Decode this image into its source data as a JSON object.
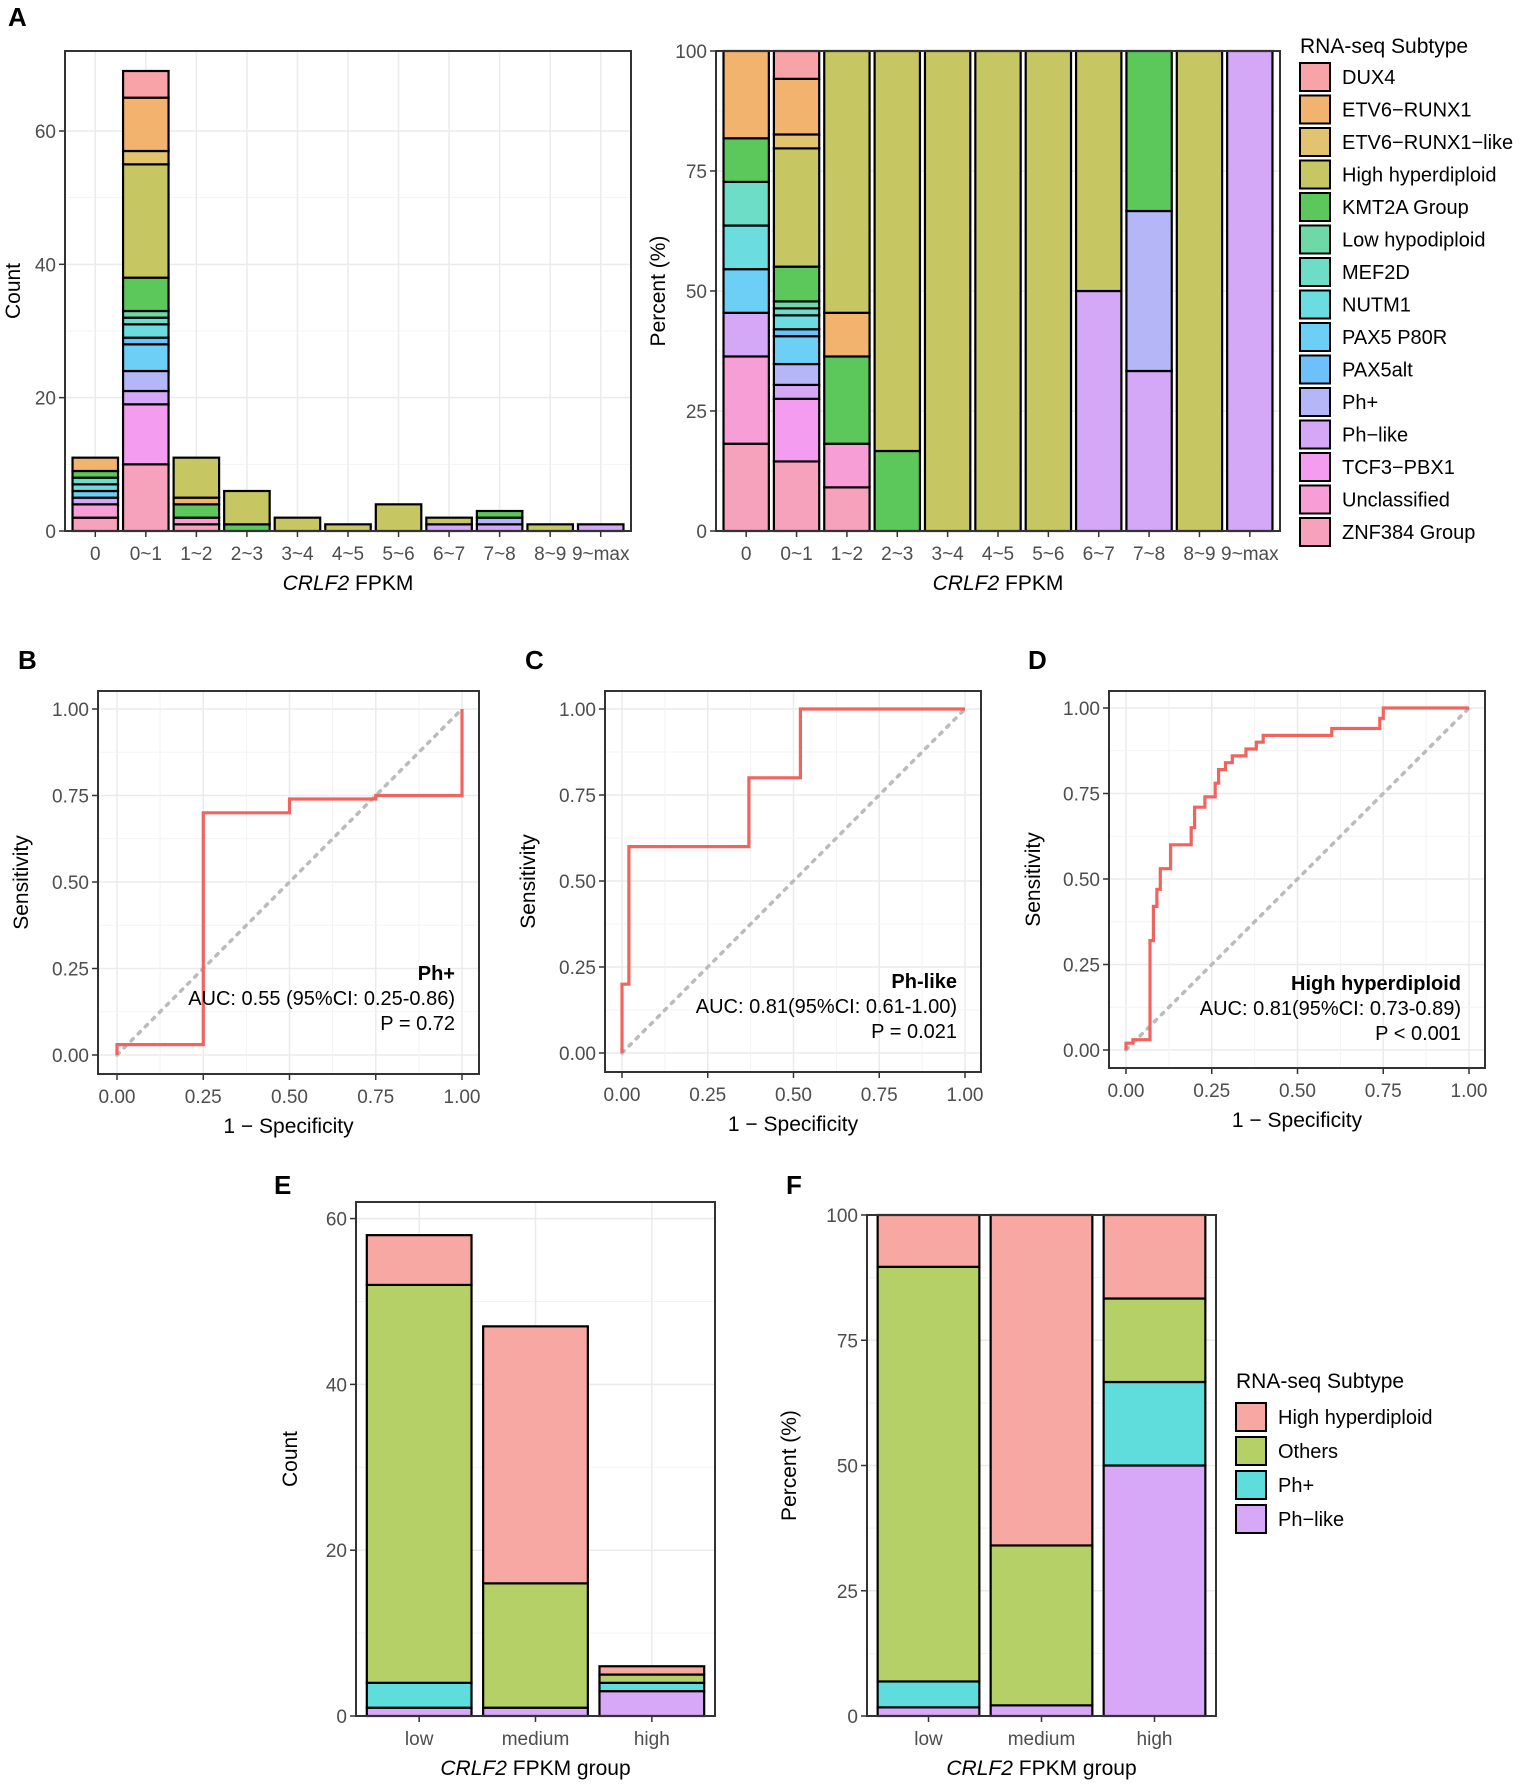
{
  "panel_labels": {
    "A": "A",
    "B": "B",
    "C": "C",
    "D": "D",
    "E": "E",
    "F": "F"
  },
  "colors": {
    "DUX4": "#F8A3A7",
    "ETV6-RUNX1": "#F2B36F",
    "ETV6-RUNX1-like": "#E2C36F",
    "High hyperdiploid": "#C6C662",
    "KMT2A Group": "#5CC85C",
    "Low hypodiploid": "#6ED9A7",
    "MEF2D": "#6EDDC8",
    "NUTM1": "#6BDCE0",
    "PAX5 P80R": "#6DCFF6",
    "PAX5alt": "#6EC0F8",
    "Ph+": "#B4B6F8",
    "Ph-like": "#D5A8F7",
    "TCF3-PBX1": "#F49CF0",
    "Unclassified": "#F79ED6",
    "ZNF384 Group": "#F7A2BC",
    "roc_line": "#F0645F",
    "diag": "#BBBBBB",
    "grid": "#EBEBEB",
    "E_HH": "#F8A8A3",
    "E_Others": "#B5D066",
    "E_Ph+": "#5FDCDC",
    "E_Ph-like": "#D8A8F8"
  },
  "chart_data": [
    {
      "id": "A1",
      "type": "bar",
      "stacked": true,
      "xlabel_italic": "CRLF2",
      "xlabel_rest": " FPKM",
      "ylabel": "Count",
      "ylim": [
        0,
        72
      ],
      "yticks": [
        0,
        20,
        40,
        60
      ],
      "categories": [
        "0",
        "0~1",
        "1~2",
        "2~3",
        "3~4",
        "4~5",
        "5~6",
        "6~7",
        "7~8",
        "8~9",
        "9~max"
      ],
      "stacks": [
        [
          [
            "ZNF384 Group",
            2
          ],
          [
            "Unclassified",
            2
          ],
          [
            "Ph-like",
            1
          ],
          [
            "PAX5 P80R",
            1
          ],
          [
            "NUTM1",
            1
          ],
          [
            "MEF2D",
            1
          ],
          [
            "KMT2A Group",
            1
          ],
          [
            "ETV6-RUNX1",
            2
          ]
        ],
        [
          [
            "ZNF384 Group",
            10
          ],
          [
            "TCF3-PBX1",
            9
          ],
          [
            "Ph-like",
            2
          ],
          [
            "Ph+",
            3
          ],
          [
            "PAX5 P80R",
            4
          ],
          [
            "PAX5alt",
            1
          ],
          [
            "NUTM1",
            2
          ],
          [
            "MEF2D",
            1
          ],
          [
            "Low hypodiploid",
            1
          ],
          [
            "KMT2A Group",
            5
          ],
          [
            "High hyperdiploid",
            17
          ],
          [
            "ETV6-RUNX1-like",
            2
          ],
          [
            "ETV6-RUNX1",
            8
          ],
          [
            "DUX4",
            4
          ]
        ],
        [
          [
            "ZNF384 Group",
            1
          ],
          [
            "Unclassified",
            1
          ],
          [
            "KMT2A Group",
            2
          ],
          [
            "ETV6-RUNX1",
            1
          ],
          [
            "High hyperdiploid",
            6
          ]
        ],
        [
          [
            "KMT2A Group",
            1
          ],
          [
            "High hyperdiploid",
            5
          ]
        ],
        [
          [
            "High hyperdiploid",
            2
          ]
        ],
        [
          [
            "High hyperdiploid",
            1
          ]
        ],
        [
          [
            "High hyperdiploid",
            4
          ]
        ],
        [
          [
            "Ph-like",
            1
          ],
          [
            "High hyperdiploid",
            1
          ]
        ],
        [
          [
            "Ph-like",
            1
          ],
          [
            "Ph+",
            1
          ],
          [
            "KMT2A Group",
            1
          ]
        ],
        [
          [
            "High hyperdiploid",
            1
          ]
        ],
        [
          [
            "Ph-like",
            1
          ]
        ]
      ]
    },
    {
      "id": "A2",
      "type": "bar",
      "stacked": true,
      "percent": true,
      "xlabel_italic": "CRLF2",
      "xlabel_rest": " FPKM",
      "ylabel": "Percent (%)",
      "ylim": [
        0,
        100
      ],
      "yticks": [
        0,
        25,
        50,
        75,
        100
      ],
      "categories": [
        "0",
        "0~1",
        "1~2",
        "2~3",
        "3~4",
        "4~5",
        "5~6",
        "6~7",
        "7~8",
        "8~9",
        "9~max"
      ]
    },
    {
      "id": "B",
      "type": "line",
      "subtitle": "Ph+",
      "auc": "AUC: 0.55 (95%CI: 0.25-0.86)",
      "p": "P = 0.72",
      "xlabel": "1 − Specificity",
      "ylabel": "Sensitivity",
      "xticks": [
        "0.00",
        "0.25",
        "0.50",
        "0.75",
        "1.00"
      ],
      "yticks": [
        "0.00",
        "0.25",
        "0.50",
        "0.75",
        "1.00"
      ],
      "points": [
        [
          0,
          0
        ],
        [
          0,
          0.03
        ],
        [
          0.25,
          0.03
        ],
        [
          0.25,
          0.7
        ],
        [
          0.5,
          0.7
        ],
        [
          0.5,
          0.74
        ],
        [
          0.75,
          0.74
        ],
        [
          0.75,
          0.75
        ],
        [
          1,
          0.75
        ],
        [
          1,
          1
        ]
      ]
    },
    {
      "id": "C",
      "type": "line",
      "subtitle": "Ph-like",
      "auc": "AUC: 0.81(95%CI: 0.61-1.00)",
      "p": "P = 0.021",
      "xlabel": "1 − Specificity",
      "ylabel": "Sensitivity",
      "xticks": [
        "0.00",
        "0.25",
        "0.50",
        "0.75",
        "1.00"
      ],
      "yticks": [
        "0.00",
        "0.25",
        "0.50",
        "0.75",
        "1.00"
      ],
      "points": [
        [
          0,
          0
        ],
        [
          0,
          0.2
        ],
        [
          0.02,
          0.2
        ],
        [
          0.02,
          0.6
        ],
        [
          0.37,
          0.6
        ],
        [
          0.37,
          0.8
        ],
        [
          0.52,
          0.8
        ],
        [
          0.52,
          1
        ],
        [
          1,
          1
        ]
      ]
    },
    {
      "id": "D",
      "type": "line",
      "subtitle": "High hyperdiploid",
      "auc": "AUC: 0.81(95%CI: 0.73-0.89)",
      "p": "P < 0.001",
      "xlabel": "1 − Specificity",
      "ylabel": "Sensitivity",
      "xticks": [
        "0.00",
        "0.25",
        "0.50",
        "0.75",
        "1.00"
      ],
      "yticks": [
        "0.00",
        "0.25",
        "0.50",
        "0.75",
        "1.00"
      ],
      "points": [
        [
          0,
          0
        ],
        [
          0,
          0.02
        ],
        [
          0.02,
          0.02
        ],
        [
          0.02,
          0.03
        ],
        [
          0.07,
          0.03
        ],
        [
          0.07,
          0.15
        ],
        [
          0.07,
          0.32
        ],
        [
          0.08,
          0.32
        ],
        [
          0.08,
          0.42
        ],
        [
          0.09,
          0.42
        ],
        [
          0.09,
          0.47
        ],
        [
          0.1,
          0.47
        ],
        [
          0.1,
          0.53
        ],
        [
          0.13,
          0.53
        ],
        [
          0.13,
          0.6
        ],
        [
          0.19,
          0.6
        ],
        [
          0.19,
          0.65
        ],
        [
          0.2,
          0.65
        ],
        [
          0.2,
          0.71
        ],
        [
          0.23,
          0.71
        ],
        [
          0.23,
          0.74
        ],
        [
          0.26,
          0.74
        ],
        [
          0.26,
          0.78
        ],
        [
          0.27,
          0.78
        ],
        [
          0.27,
          0.82
        ],
        [
          0.29,
          0.82
        ],
        [
          0.29,
          0.84
        ],
        [
          0.31,
          0.84
        ],
        [
          0.31,
          0.86
        ],
        [
          0.35,
          0.86
        ],
        [
          0.35,
          0.88
        ],
        [
          0.38,
          0.88
        ],
        [
          0.38,
          0.9
        ],
        [
          0.4,
          0.9
        ],
        [
          0.4,
          0.92
        ],
        [
          0.6,
          0.92
        ],
        [
          0.6,
          0.94
        ],
        [
          0.74,
          0.94
        ],
        [
          0.74,
          0.97
        ],
        [
          0.75,
          0.97
        ],
        [
          0.75,
          1
        ],
        [
          1,
          1
        ]
      ]
    },
    {
      "id": "E",
      "type": "bar",
      "stacked": true,
      "xlabel_italic": "CRLF2",
      "xlabel_rest": " FPKM group",
      "ylabel": "Count",
      "ylim": [
        0,
        62
      ],
      "yticks": [
        0,
        20,
        40,
        60
      ],
      "categories": [
        "low",
        "medium",
        "high"
      ],
      "stacks": [
        [
          [
            "Ph-like",
            1
          ],
          [
            "Ph+",
            3
          ],
          [
            "Others",
            48
          ],
          [
            "High hyperdiploid",
            6
          ]
        ],
        [
          [
            "Ph-like",
            1
          ],
          [
            "Others",
            15
          ],
          [
            "High hyperdiploid",
            31
          ]
        ],
        [
          [
            "Ph-like",
            3
          ],
          [
            "Ph+",
            1
          ],
          [
            "Others",
            1
          ],
          [
            "High hyperdiploid",
            1
          ]
        ]
      ]
    },
    {
      "id": "F",
      "type": "bar",
      "stacked": true,
      "percent": true,
      "xlabel_italic": "CRLF2",
      "xlabel_rest": " FPKM group",
      "ylabel": "Percent (%)",
      "ylim": [
        0,
        100
      ],
      "yticks": [
        0,
        25,
        50,
        75,
        100
      ],
      "categories": [
        "low",
        "medium",
        "high"
      ]
    }
  ],
  "legend_A": {
    "title": "RNA-seq Subtype",
    "items": [
      "DUX4",
      "ETV6−RUNX1",
      "ETV6−RUNX1−like",
      "High hyperdiploid",
      "KMT2A Group",
      "Low hypodiploid",
      "MEF2D",
      "NUTM1",
      "PAX5 P80R",
      "PAX5alt",
      "Ph+",
      "Ph−like",
      "TCF3−PBX1",
      "Unclassified",
      "ZNF384 Group"
    ],
    "keys": [
      "DUX4",
      "ETV6-RUNX1",
      "ETV6-RUNX1-like",
      "High hyperdiploid",
      "KMT2A Group",
      "Low hypodiploid",
      "MEF2D",
      "NUTM1",
      "PAX5 P80R",
      "PAX5alt",
      "Ph+",
      "Ph-like",
      "TCF3-PBX1",
      "Unclassified",
      "ZNF384 Group"
    ]
  },
  "legend_F": {
    "title": "RNA-seq Subtype",
    "items": [
      "High hyperdiploid",
      "Others",
      "Ph+",
      "Ph−like"
    ],
    "keys": [
      "E_HH",
      "E_Others",
      "E_Ph+",
      "E_Ph-like"
    ]
  }
}
